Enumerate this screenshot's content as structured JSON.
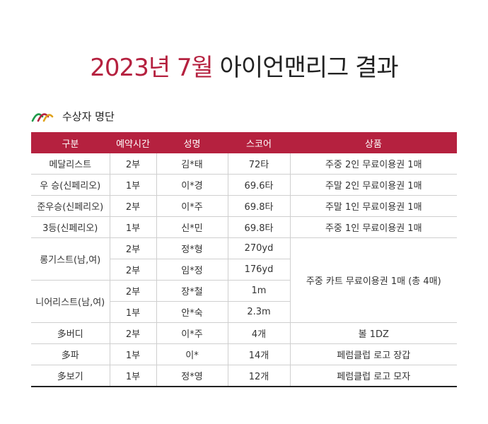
{
  "heading": {
    "accent": "2023년 7월",
    "rest": "아이언맨리그 결과"
  },
  "section": {
    "label": "수상자 명단",
    "icon": "logo-arcs-icon"
  },
  "table": {
    "headers": [
      "구분",
      "예약시간",
      "성명",
      "스코어",
      "상품"
    ],
    "rows": [
      {
        "category": "메달리스트",
        "time": "2부",
        "name": "김*태",
        "score": "72타",
        "prize": "주중 2인 무료이용권 1매"
      },
      {
        "category": "우 승(신페리오)",
        "time": "1부",
        "name": "이*경",
        "score": "69.6타",
        "prize": "주말 2인 무료이용권 1매"
      },
      {
        "category": "준우승(신페리오)",
        "time": "2부",
        "name": "이*주",
        "score": "69.8타",
        "prize": "주말 1인 무료이용권 1매"
      },
      {
        "category": "3등(신페리오)",
        "time": "1부",
        "name": "신*민",
        "score": "69.8타",
        "prize": "주중 1인 무료이용권 1매"
      }
    ],
    "group_prize": "주중 카트 무료이용권 1매 (총 4매)",
    "long_group": {
      "category": "롱기스트(남,여)",
      "rows": [
        {
          "time": "2부",
          "name": "정*형",
          "score": "270yd"
        },
        {
          "time": "2부",
          "name": "임*정",
          "score": "176yd"
        }
      ]
    },
    "near_group": {
      "category": "니어리스트(남,여)",
      "rows": [
        {
          "time": "2부",
          "name": "장*철",
          "score": "1m"
        },
        {
          "time": "1부",
          "name": "안*숙",
          "score": "2.3m"
        }
      ]
    },
    "bottom_rows": [
      {
        "category": "多버디",
        "time": "2부",
        "name": "이*주",
        "score": "4개",
        "prize": "볼 1DZ"
      },
      {
        "category": "多파",
        "time": "1부",
        "name": "이*",
        "score": "14개",
        "prize": "페럼클럽 로고 장갑"
      },
      {
        "category": "多보기",
        "time": "1부",
        "name": "정*영",
        "score": "12개",
        "prize": "페럼클럽 로고 모자"
      }
    ]
  },
  "colors": {
    "accent": "#b5213f",
    "logo_green": "#1e9a4a",
    "logo_gold": "#e0a21c"
  }
}
